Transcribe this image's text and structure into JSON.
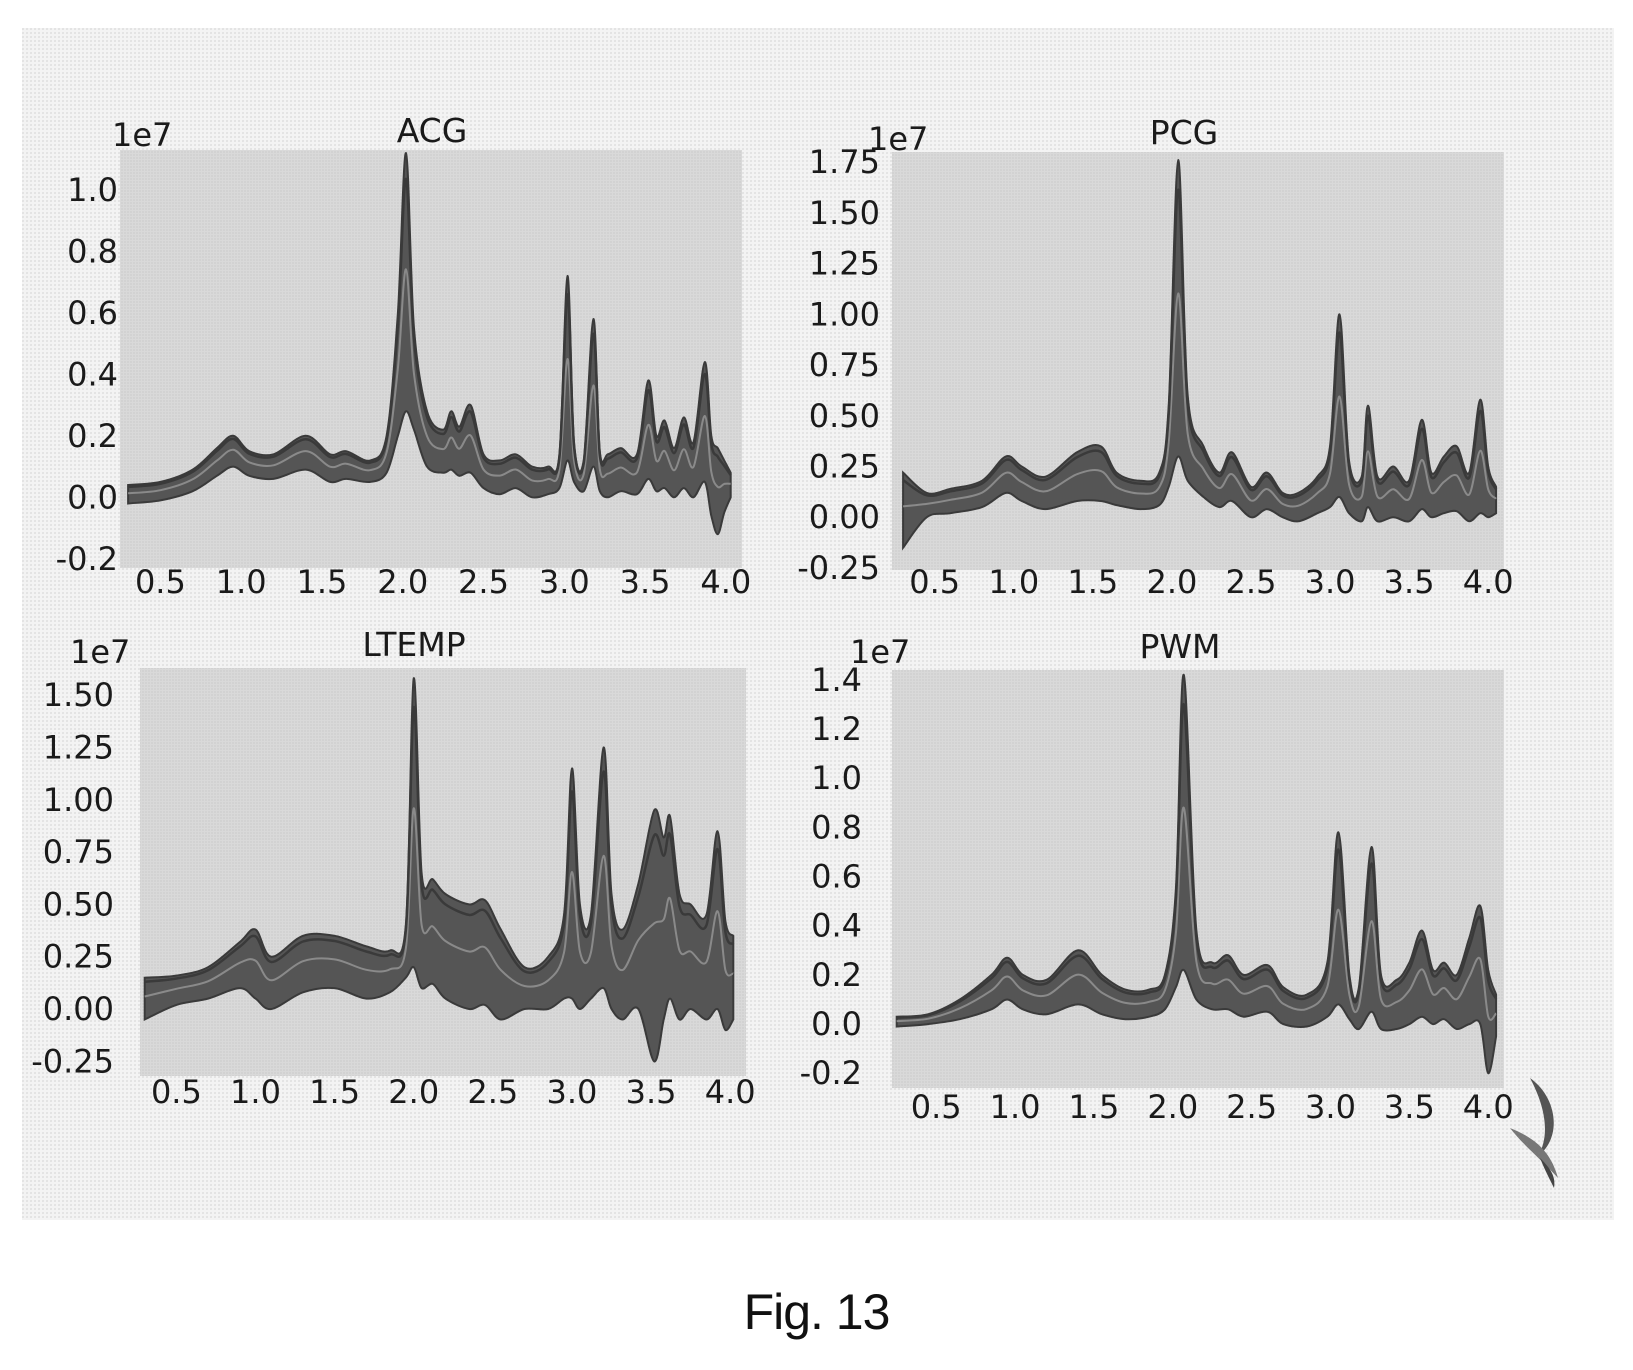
{
  "caption": "Fig. 13",
  "colors": {
    "panel_background": "#f4f4f4",
    "plot_background": "#d6d6d6",
    "band_dark": "#3a3a3a",
    "band_mid": "#555555",
    "band_light": "#8a8a8a",
    "text": "#1a1a1a"
  },
  "decoration": "page-curl-icon",
  "chart_data": [
    {
      "type": "line",
      "title": "ACG",
      "offset_label": "1e7",
      "grid": false,
      "xlim": [
        0.25,
        4.1
      ],
      "ylim": [
        -0.23,
        1.13
      ],
      "xticks": [
        "0.5",
        "1.0",
        "1.5",
        "2.0",
        "2.5",
        "3.0",
        "3.5",
        "4.0"
      ],
      "yticks": [
        "1.0",
        "0.8",
        "0.6",
        "0.4",
        "0.2",
        "0.0",
        "-0.2"
      ],
      "ytick_values": [
        1.0,
        0.8,
        0.6,
        0.4,
        0.2,
        0.0,
        -0.2
      ],
      "series_band": {
        "x": [
          0.3,
          0.5,
          0.7,
          0.85,
          0.95,
          1.05,
          1.2,
          1.4,
          1.55,
          1.65,
          1.8,
          1.9,
          1.97,
          2.02,
          2.07,
          2.15,
          2.25,
          2.3,
          2.35,
          2.42,
          2.5,
          2.6,
          2.7,
          2.8,
          2.9,
          2.97,
          3.02,
          3.06,
          3.12,
          3.18,
          3.22,
          3.27,
          3.35,
          3.45,
          3.52,
          3.57,
          3.62,
          3.68,
          3.74,
          3.8,
          3.87,
          3.91,
          3.95,
          3.99,
          4.03
        ],
        "upper": [
          0.04,
          0.05,
          0.09,
          0.16,
          0.2,
          0.15,
          0.14,
          0.2,
          0.14,
          0.15,
          0.12,
          0.2,
          0.6,
          1.12,
          0.55,
          0.28,
          0.22,
          0.28,
          0.23,
          0.3,
          0.14,
          0.12,
          0.14,
          0.1,
          0.1,
          0.14,
          0.72,
          0.18,
          0.12,
          0.58,
          0.15,
          0.14,
          0.16,
          0.14,
          0.38,
          0.2,
          0.25,
          0.16,
          0.26,
          0.18,
          0.44,
          0.2,
          0.16,
          0.12,
          0.08
        ],
        "lower": [
          -0.02,
          -0.01,
          0.02,
          0.07,
          0.1,
          0.07,
          0.06,
          0.09,
          0.05,
          0.06,
          0.05,
          0.08,
          0.2,
          0.28,
          0.22,
          0.1,
          0.08,
          0.09,
          0.07,
          0.08,
          0.03,
          0.01,
          0.03,
          0.0,
          0.01,
          0.03,
          0.12,
          0.05,
          0.02,
          0.1,
          0.02,
          0.0,
          0.02,
          0.01,
          0.06,
          0.02,
          0.03,
          0.0,
          0.03,
          0.0,
          0.05,
          -0.06,
          -0.12,
          -0.05,
          0.0
        ]
      }
    },
    {
      "type": "line",
      "title": "PCG",
      "offset_label": "1e7",
      "grid": false,
      "xlim": [
        0.23,
        4.1
      ],
      "ylim": [
        -0.26,
        1.8
      ],
      "xticks": [
        "0.5",
        "1.0",
        "1.5",
        "2.0",
        "2.5",
        "3.0",
        "3.5",
        "4.0"
      ],
      "yticks": [
        "1.75",
        "1.50",
        "1.25",
        "1.00",
        "0.75",
        "0.50",
        "0.25",
        "0.00",
        "-0.25"
      ],
      "ytick_values": [
        1.75,
        1.5,
        1.25,
        1.0,
        0.75,
        0.5,
        0.25,
        0.0,
        -0.25
      ],
      "series_band": {
        "x": [
          0.3,
          0.45,
          0.6,
          0.8,
          0.95,
          1.05,
          1.2,
          1.4,
          1.55,
          1.65,
          1.8,
          1.92,
          1.98,
          2.04,
          2.1,
          2.2,
          2.3,
          2.38,
          2.5,
          2.6,
          2.7,
          2.8,
          2.92,
          3.0,
          3.06,
          3.12,
          3.2,
          3.24,
          3.3,
          3.4,
          3.5,
          3.58,
          3.64,
          3.72,
          3.8,
          3.88,
          3.95,
          4.0,
          4.05
        ],
        "upper": [
          0.22,
          0.12,
          0.14,
          0.18,
          0.3,
          0.25,
          0.2,
          0.32,
          0.35,
          0.22,
          0.18,
          0.22,
          0.55,
          1.76,
          0.6,
          0.35,
          0.22,
          0.32,
          0.15,
          0.22,
          0.12,
          0.12,
          0.2,
          0.35,
          1.0,
          0.28,
          0.2,
          0.55,
          0.2,
          0.25,
          0.18,
          0.48,
          0.22,
          0.3,
          0.35,
          0.22,
          0.58,
          0.25,
          0.15
        ],
        "lower": [
          -0.15,
          0.0,
          0.02,
          0.05,
          0.12,
          0.08,
          0.04,
          0.08,
          0.08,
          0.06,
          0.04,
          0.06,
          0.15,
          0.3,
          0.18,
          0.1,
          0.05,
          0.08,
          0.0,
          0.04,
          0.0,
          -0.02,
          0.02,
          0.05,
          0.1,
          0.02,
          -0.02,
          0.05,
          -0.02,
          0.0,
          -0.02,
          0.04,
          0.0,
          0.02,
          0.03,
          -0.02,
          0.02,
          0.0,
          0.02
        ]
      }
    },
    {
      "type": "line",
      "title": "LTEMP",
      "offset_label": "1e7",
      "grid": false,
      "xlim": [
        0.27,
        4.1
      ],
      "ylim": [
        -0.32,
        1.63
      ],
      "xticks": [
        "0.5",
        "1.0",
        "1.5",
        "2.0",
        "2.5",
        "3.0",
        "3.5",
        "4.0"
      ],
      "yticks": [
        "1.50",
        "1.25",
        "1.00",
        "0.75",
        "0.50",
        "0.25",
        "0.00",
        "-0.25"
      ],
      "ytick_values": [
        1.5,
        1.25,
        1.0,
        0.75,
        0.5,
        0.25,
        0.0,
        -0.25
      ],
      "series_band": {
        "x": [
          0.3,
          0.5,
          0.7,
          0.9,
          1.0,
          1.1,
          1.3,
          1.5,
          1.7,
          1.85,
          1.95,
          2.0,
          2.05,
          2.12,
          2.2,
          2.35,
          2.45,
          2.55,
          2.7,
          2.85,
          2.95,
          3.0,
          3.05,
          3.12,
          3.2,
          3.25,
          3.32,
          3.42,
          3.52,
          3.58,
          3.62,
          3.68,
          3.75,
          3.85,
          3.92,
          3.97,
          4.02
        ],
        "upper": [
          0.15,
          0.16,
          0.2,
          0.32,
          0.38,
          0.25,
          0.35,
          0.35,
          0.3,
          0.28,
          0.4,
          1.58,
          0.65,
          0.62,
          0.55,
          0.5,
          0.52,
          0.38,
          0.2,
          0.25,
          0.45,
          1.15,
          0.5,
          0.45,
          1.25,
          0.55,
          0.38,
          0.6,
          0.95,
          0.82,
          0.92,
          0.55,
          0.5,
          0.45,
          0.85,
          0.42,
          0.35
        ],
        "lower": [
          -0.05,
          0.02,
          0.05,
          0.1,
          0.05,
          0.0,
          0.08,
          0.1,
          0.05,
          0.08,
          0.15,
          0.2,
          0.1,
          0.12,
          0.05,
          0.0,
          0.02,
          -0.05,
          0.0,
          0.0,
          0.05,
          0.05,
          0.0,
          0.05,
          0.1,
          0.0,
          -0.05,
          0.0,
          -0.25,
          -0.05,
          0.05,
          -0.05,
          0.0,
          -0.05,
          0.0,
          -0.1,
          -0.05
        ]
      }
    },
    {
      "type": "line",
      "title": "PWM",
      "offset_label": "1e7",
      "grid": false,
      "xlim": [
        0.22,
        4.1
      ],
      "ylim": [
        -0.26,
        1.44
      ],
      "xticks": [
        "0.5",
        "1.0",
        "1.5",
        "2.0",
        "2.5",
        "3.0",
        "3.5",
        "4.0"
      ],
      "yticks": [
        "1.4",
        "1.2",
        "1.0",
        "0.8",
        "0.6",
        "0.4",
        "0.2",
        "0.0",
        "-0.2"
      ],
      "ytick_values": [
        1.4,
        1.2,
        1.0,
        0.8,
        0.6,
        0.4,
        0.2,
        0.0,
        -0.2
      ],
      "series_band": {
        "x": [
          0.25,
          0.45,
          0.65,
          0.85,
          0.95,
          1.05,
          1.2,
          1.4,
          1.55,
          1.7,
          1.85,
          1.95,
          2.02,
          2.07,
          2.15,
          2.25,
          2.35,
          2.45,
          2.6,
          2.7,
          2.85,
          2.98,
          3.05,
          3.12,
          3.18,
          3.26,
          3.32,
          3.42,
          3.5,
          3.58,
          3.65,
          3.72,
          3.8,
          3.88,
          3.95,
          4.0,
          4.05
        ],
        "upper": [
          0.03,
          0.04,
          0.1,
          0.2,
          0.27,
          0.2,
          0.18,
          0.3,
          0.2,
          0.14,
          0.14,
          0.2,
          0.55,
          1.42,
          0.38,
          0.25,
          0.28,
          0.2,
          0.24,
          0.15,
          0.12,
          0.25,
          0.78,
          0.2,
          0.15,
          0.72,
          0.2,
          0.18,
          0.25,
          0.38,
          0.22,
          0.25,
          0.2,
          0.35,
          0.48,
          0.22,
          0.12
        ],
        "lower": [
          -0.01,
          0.0,
          0.02,
          0.06,
          0.1,
          0.06,
          0.04,
          0.08,
          0.04,
          0.02,
          0.03,
          0.06,
          0.15,
          0.22,
          0.1,
          0.06,
          0.06,
          0.03,
          0.05,
          0.0,
          -0.01,
          0.03,
          0.08,
          0.02,
          -0.02,
          0.05,
          -0.02,
          -0.02,
          0.0,
          0.03,
          0.0,
          0.02,
          -0.02,
          0.0,
          0.0,
          -0.2,
          -0.05
        ]
      }
    }
  ]
}
